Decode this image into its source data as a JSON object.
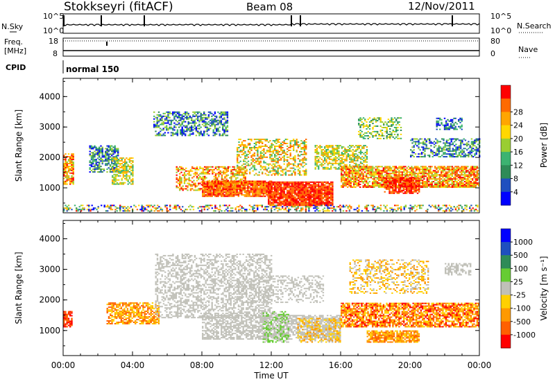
{
  "header": {
    "station": "Stokkseyri (fitACF)",
    "beam": "Beam 08",
    "date": "12/Nov/2011"
  },
  "top_panels": {
    "nsky_label": "N.Sky",
    "nsearch_label": "N.Search",
    "nsky_ticks": [
      "10^5",
      "10^0"
    ],
    "freq_label_1": "Freq.",
    "freq_label_2": "[MHz]",
    "freq_ticks": [
      "18",
      "8"
    ],
    "nave_label": "Nave",
    "nave_ticks": [
      "80",
      "0"
    ],
    "cpid_label": "CPID",
    "cpid_value": "normal 150"
  },
  "colors": {
    "power": [
      "#0000ff",
      "#1f4fbf",
      "#2e8b57",
      "#3cb371",
      "#9acd32",
      "#ffd700",
      "#ffa500",
      "#ff6a00",
      "#ff0000"
    ],
    "velocity": [
      "#0000ff",
      "#1f4fbf",
      "#2e8b57",
      "#66cc33",
      "#c0c0b8",
      "#ffd000",
      "#ff9900",
      "#ff6000",
      "#ff0000"
    ]
  },
  "chart_data": [
    {
      "type": "heatmap",
      "panel": "power",
      "xlabel": "",
      "ylabel": "Slant Range [km]",
      "ylim": [
        180,
        4600
      ],
      "yticks": [
        "1000",
        "2000",
        "3000",
        "4000"
      ],
      "colorbar_label": "Power [dB]",
      "colorbar_ticks": [
        "4",
        "8",
        "12",
        "16",
        "20",
        "24",
        "28"
      ]
    },
    {
      "type": "heatmap",
      "panel": "velocity",
      "xlabel": "Time UT",
      "ylabel": "Slant Range [km]",
      "ylim": [
        180,
        4600
      ],
      "yticks": [
        "1000",
        "2000",
        "3000",
        "4000"
      ],
      "xticks": [
        "00:00",
        "04:00",
        "08:00",
        "12:00",
        "16:00",
        "20:00",
        "00:00"
      ],
      "colorbar_label": "Velocity [m s⁻¹]",
      "colorbar_ticks": [
        "1000",
        "500",
        "100",
        "25",
        "-25",
        "-100",
        "-500",
        "-1000"
      ]
    }
  ]
}
